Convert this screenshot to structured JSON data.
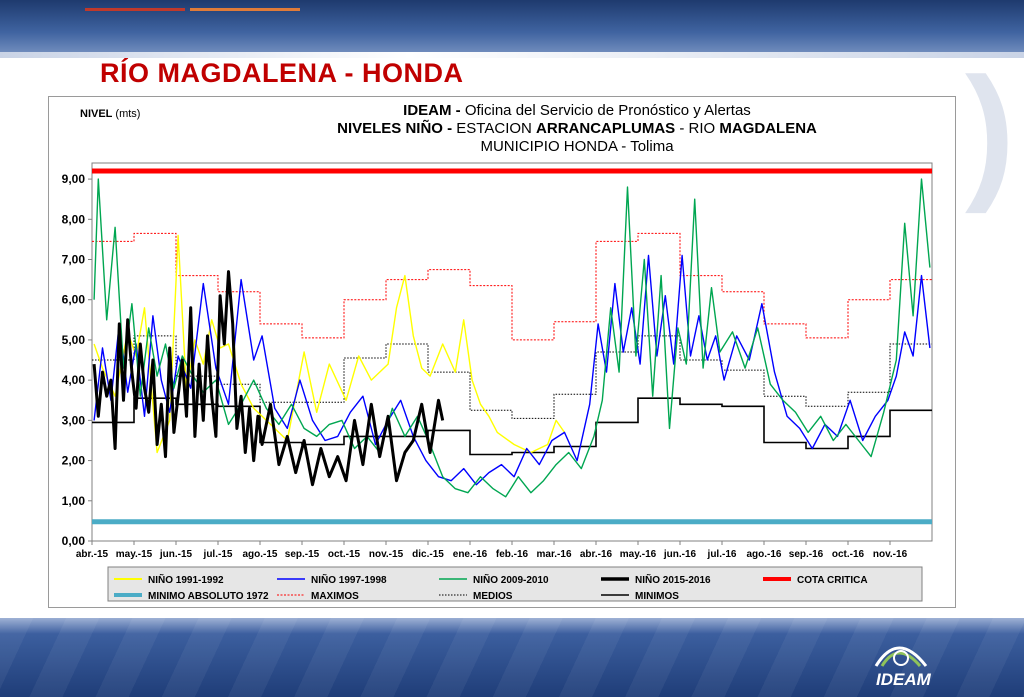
{
  "slide": {
    "title": "RÍO MAGDALENA - HONDA",
    "logo_text": "IDEAM"
  },
  "colors": {
    "title": "#c00000",
    "nino_1991_1992": "#ffff00",
    "nino_1997_1998": "#0000ff",
    "nino_2009_2010": "#00a651",
    "nino_2015_2016": "#000000",
    "cota_critica": "#ff0000",
    "minimo_absoluto": "#4bacc6",
    "maximos": "#ff0000",
    "medios": "#000000",
    "minimos": "#000000"
  },
  "chart_data": {
    "type": "line",
    "title_lines": [
      {
        "bold": "IDEAM - ",
        "rest": "Oficina del Servicio de Pronóstico y Alertas"
      },
      {
        "bold": "NIVELES NIÑO - ",
        "rest": "ESTACION ",
        "bold2": "ARRANCAPLUMAS",
        "rest2": " - RIO ",
        "bold3": "MAGDALENA"
      },
      {
        "bold": "",
        "rest": "MUNICIPIO HONDA - Tolima"
      }
    ],
    "ylabel_bold": "NIVEL",
    "ylabel_unit": "(mts)",
    "ylim": [
      0,
      9.4
    ],
    "yticks": [
      0,
      1,
      2,
      3,
      4,
      5,
      6,
      7,
      8,
      9
    ],
    "ytick_labels": [
      "0,00",
      "1,00",
      "2,00",
      "3,00",
      "4,00",
      "5,00",
      "6,00",
      "7,00",
      "8,00",
      "9,00"
    ],
    "categories": [
      "abr.-15",
      "may.-15",
      "jun.-15",
      "jul.-15",
      "ago.-15",
      "sep.-15",
      "oct.-15",
      "nov.-15",
      "dic.-15",
      "ene.-16",
      "feb.-16",
      "mar.-16",
      "abr.-16",
      "may.-16",
      "jun.-16",
      "jul.-16",
      "ago.-16",
      "sep.-16",
      "oct.-16",
      "nov.-16"
    ],
    "grid": false,
    "legend_position": "bottom",
    "legend": [
      "NIÑO 1991-1992",
      "NIÑO 1997-1998",
      "NIÑO 2009-2010",
      "NIÑO 2015-2016",
      "COTA CRITICA",
      "MINIMO ABSOLUTO 1972",
      "MAXIMOS",
      "MEDIOS",
      "MINIMOS"
    ],
    "reference_lines": {
      "cota_critica": 9.2,
      "minimo_absoluto_1972": 0.48
    },
    "step_series": {
      "maximos": [
        7.45,
        7.65,
        6.6,
        6.2,
        5.4,
        5.05,
        6.0,
        6.5,
        6.75,
        6.35,
        5.0,
        5.45,
        7.45,
        7.65,
        6.6,
        6.2,
        5.4,
        5.05,
        6.0,
        6.5
      ],
      "medios": [
        4.5,
        5.1,
        4.1,
        3.9,
        3.45,
        3.45,
        4.55,
        4.9,
        4.2,
        3.25,
        3.05,
        3.65,
        4.7,
        5.1,
        4.5,
        4.25,
        3.6,
        3.35,
        3.7,
        4.9
      ],
      "minimos": [
        2.95,
        3.55,
        3.4,
        3.35,
        2.45,
        2.4,
        2.6,
        2.6,
        2.75,
        2.15,
        2.2,
        2.35,
        2.95,
        3.55,
        3.4,
        3.35,
        2.45,
        2.3,
        2.6,
        3.25
      ]
    },
    "series": [
      {
        "name": "NIÑO 1991-1992",
        "x": [
          0,
          0.2,
          0.5,
          0.8,
          1.0,
          1.2,
          1.5,
          1.8,
          2.0,
          2.2,
          2.4,
          2.6,
          2.8,
          3.0,
          3.2,
          3.5,
          3.8,
          4.0,
          4.3,
          4.6,
          5.0,
          5.3,
          5.6,
          6.0,
          6.3,
          6.6,
          7.0,
          7.2,
          7.4,
          7.6,
          7.8,
          8.0,
          8.3,
          8.6,
          8.8,
          9.0,
          9.2,
          9.4,
          9.6,
          10.0,
          10.4,
          10.8,
          11.0,
          11.2
        ],
        "y": [
          4.9,
          4.3,
          3.6,
          5.2,
          4.6,
          5.8,
          2.2,
          3.0,
          7.6,
          3.7,
          5.0,
          4.4,
          5.5,
          4.8,
          4.9,
          3.9,
          3.3,
          3.1,
          2.8,
          2.5,
          4.7,
          3.2,
          4.4,
          3.5,
          4.6,
          4.0,
          4.4,
          5.8,
          6.6,
          5.1,
          4.3,
          4.1,
          4.9,
          4.2,
          5.5,
          4.0,
          3.4,
          3.1,
          2.7,
          2.4,
          2.2,
          2.4,
          3.0,
          2.7
        ]
      },
      {
        "name": "NIÑO 1997-1998",
        "x": [
          0,
          0.2,
          0.4,
          0.6,
          0.8,
          1.0,
          1.2,
          1.4,
          1.6,
          1.8,
          2.0,
          2.3,
          2.6,
          2.9,
          3.2,
          3.5,
          3.8,
          4.0,
          4.3,
          4.6,
          4.9,
          5.2,
          5.5,
          5.8,
          6.1,
          6.4,
          6.7,
          7.0,
          7.3,
          7.6,
          7.9,
          8.2,
          8.5,
          8.8,
          9.1,
          9.4,
          9.7,
          10.0,
          10.3,
          10.6,
          10.9,
          11.2,
          11.5,
          11.8,
          12.0,
          12.2,
          12.4,
          12.6,
          12.8,
          13.0,
          13.2,
          13.4,
          13.6,
          13.8,
          14.0,
          14.2,
          14.4,
          14.6,
          14.8,
          15.0,
          15.3,
          15.6,
          15.9,
          16.2,
          16.5,
          16.8,
          17.1,
          17.4,
          17.7,
          18.0,
          18.3,
          18.6,
          18.9,
          19.1,
          19.3,
          19.5,
          19.7,
          19.9
        ],
        "y": [
          3.0,
          4.8,
          3.5,
          5.4,
          3.7,
          4.9,
          3.1,
          5.6,
          4.0,
          3.2,
          4.6,
          3.8,
          6.4,
          4.3,
          3.4,
          6.5,
          4.5,
          5.1,
          3.3,
          2.8,
          4.0,
          3.0,
          2.5,
          2.6,
          3.2,
          3.6,
          2.4,
          3.0,
          3.5,
          2.6,
          2.0,
          1.6,
          1.5,
          1.8,
          1.4,
          1.7,
          1.9,
          1.6,
          2.3,
          1.9,
          2.5,
          2.7,
          2.0,
          3.4,
          5.4,
          4.2,
          6.4,
          4.7,
          5.8,
          4.4,
          7.1,
          4.6,
          6.1,
          4.4,
          7.1,
          4.6,
          5.6,
          4.5,
          5.1,
          4.0,
          5.1,
          4.5,
          5.9,
          4.2,
          3.1,
          2.8,
          2.3,
          2.9,
          2.6,
          3.5,
          2.5,
          3.1,
          3.5,
          4.1,
          5.2,
          4.6,
          6.6,
          4.8
        ]
      },
      {
        "name": "NIÑO 2009-2010",
        "x": [
          0,
          0.1,
          0.3,
          0.5,
          0.7,
          0.9,
          1.1,
          1.3,
          1.5,
          1.7,
          1.9,
          2.1,
          2.3,
          2.6,
          2.9,
          3.2,
          3.5,
          3.8,
          4.1,
          4.4,
          4.7,
          5.0,
          5.3,
          5.6,
          5.9,
          6.2,
          6.5,
          6.8,
          7.1,
          7.4,
          7.7,
          8.0,
          8.3,
          8.6,
          8.9,
          9.2,
          9.5,
          9.8,
          10.1,
          10.4,
          10.7,
          11.0,
          11.3,
          11.6,
          11.9,
          12.1,
          12.3,
          12.5,
          12.7,
          12.9,
          13.1,
          13.3,
          13.5,
          13.7,
          13.9,
          14.1,
          14.3,
          14.5,
          14.7,
          14.9,
          15.2,
          15.5,
          15.8,
          16.1,
          16.4,
          16.7,
          17.0,
          17.3,
          17.6,
          17.9,
          18.2,
          18.5,
          18.8,
          19.1,
          19.3,
          19.5,
          19.7,
          19.9
        ],
        "y": [
          6.0,
          9.0,
          5.5,
          7.8,
          4.3,
          5.9,
          3.6,
          5.3,
          4.1,
          4.9,
          3.8,
          4.6,
          4.2,
          3.7,
          4.0,
          2.9,
          3.4,
          4.0,
          3.3,
          2.9,
          3.4,
          2.8,
          2.6,
          2.9,
          3.0,
          2.3,
          2.6,
          2.2,
          3.3,
          2.6,
          3.1,
          2.4,
          1.6,
          1.3,
          1.2,
          1.6,
          1.3,
          1.1,
          1.6,
          1.2,
          1.5,
          1.9,
          2.2,
          1.8,
          2.6,
          3.5,
          5.8,
          4.2,
          8.8,
          4.6,
          7.0,
          3.6,
          6.6,
          2.8,
          5.3,
          4.4,
          8.5,
          4.3,
          6.3,
          4.7,
          5.2,
          4.3,
          5.3,
          3.9,
          3.5,
          3.2,
          2.7,
          3.1,
          2.5,
          2.9,
          2.5,
          2.1,
          3.2,
          4.5,
          7.9,
          5.6,
          9.0,
          6.8
        ]
      },
      {
        "name": "NIÑO 2015-2016",
        "x": [
          0,
          0.1,
          0.2,
          0.3,
          0.4,
          0.5,
          0.6,
          0.7,
          0.8,
          0.9,
          1.0,
          1.1,
          1.2,
          1.3,
          1.4,
          1.5,
          1.6,
          1.7,
          1.8,
          1.9,
          2.0,
          2.1,
          2.2,
          2.3,
          2.4,
          2.5,
          2.6,
          2.7,
          2.8,
          2.9,
          3.0,
          3.1,
          3.2,
          3.3,
          3.4,
          3.5,
          3.6,
          3.7,
          3.8,
          3.9,
          4.0,
          4.2,
          4.4,
          4.6,
          4.8,
          5.0,
          5.2,
          5.4,
          5.6,
          5.8,
          6.0,
          6.2,
          6.4,
          6.6,
          6.8,
          7.0,
          7.2,
          7.4,
          7.6,
          7.8,
          8.0,
          8.2,
          8.3
        ],
        "y": [
          4.4,
          3.1,
          4.2,
          3.6,
          4.0,
          2.3,
          5.4,
          3.5,
          5.5,
          4.2,
          3.3,
          4.9,
          3.8,
          3.2,
          4.5,
          2.4,
          3.4,
          2.1,
          4.8,
          2.7,
          3.6,
          4.5,
          3.1,
          5.8,
          2.6,
          4.4,
          3.0,
          5.1,
          3.6,
          2.6,
          6.1,
          4.9,
          6.7,
          5.4,
          2.8,
          3.6,
          2.2,
          3.3,
          2.0,
          3.1,
          2.4,
          3.4,
          1.9,
          2.6,
          1.7,
          2.5,
          1.4,
          2.3,
          1.6,
          2.1,
          1.5,
          3.0,
          1.9,
          3.4,
          2.1,
          3.1,
          1.5,
          2.2,
          2.5,
          3.4,
          2.2,
          3.5,
          3.0
        ]
      }
    ]
  }
}
